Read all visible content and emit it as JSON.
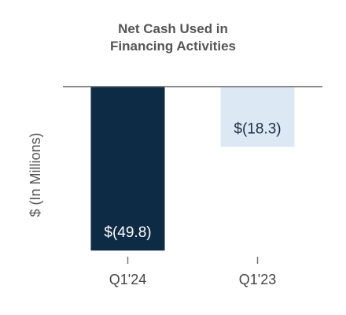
{
  "chart_data": {
    "type": "bar",
    "title": "Net Cash Used in Financing Activities",
    "y_label": "$ (In Millions)",
    "categories": [
      "Q1'24",
      "Q1'23"
    ],
    "values": [
      -49.8,
      -18.3
    ],
    "value_labels": [
      "$(49.8)",
      "$(18.3)"
    ],
    "colors": [
      "#0e2b45",
      "#dce9f4"
    ],
    "ylim": [
      -50,
      0
    ]
  }
}
